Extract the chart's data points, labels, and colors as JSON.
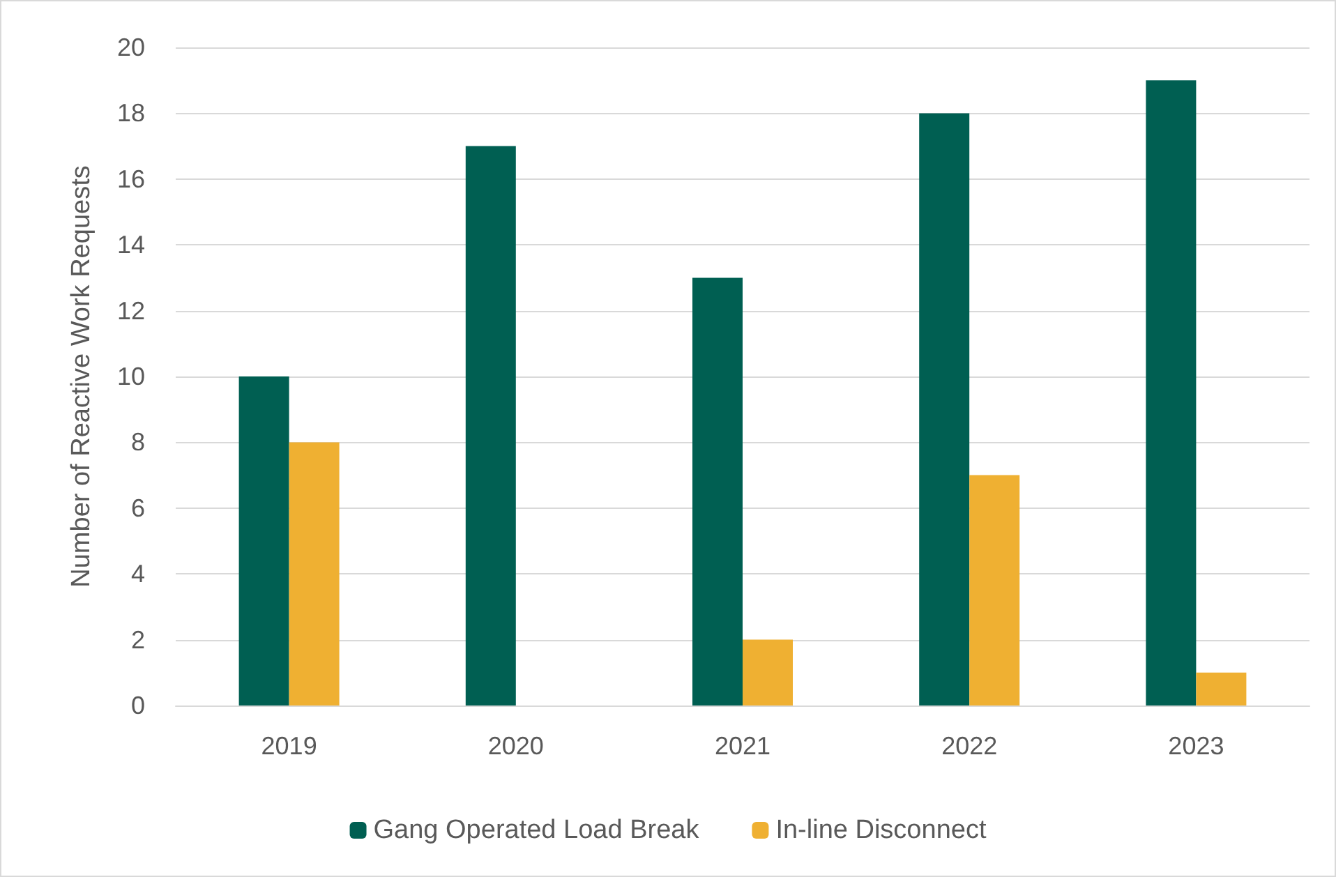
{
  "chart_data": {
    "type": "bar",
    "ylabel": "Number of Reactive Work Requests",
    "categories": [
      "2019",
      "2020",
      "2021",
      "2022",
      "2023"
    ],
    "series": [
      {
        "name": "Gang Operated Load Break",
        "color": "#005f52",
        "values": [
          10,
          17,
          13,
          18,
          19
        ]
      },
      {
        "name": "In-line Disconnect",
        "color": "#efb032",
        "values": [
          8,
          0,
          2,
          7,
          1
        ]
      }
    ],
    "ylim": [
      0,
      20
    ],
    "yticks": [
      0,
      2,
      4,
      6,
      8,
      10,
      12,
      14,
      16,
      18,
      20
    ],
    "grid": "y",
    "legend": "bottom"
  }
}
